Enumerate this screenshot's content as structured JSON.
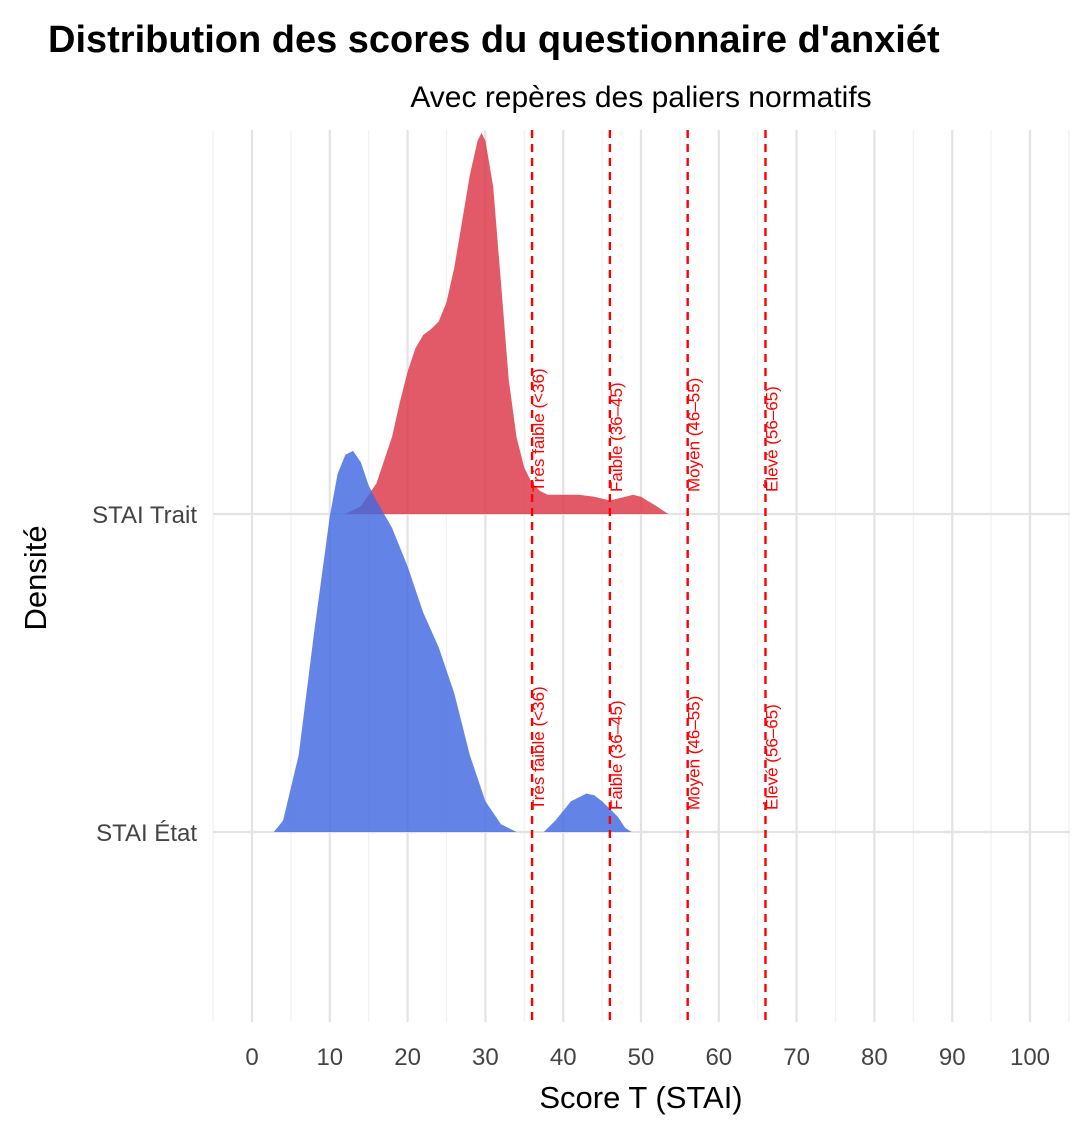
{
  "chart_data": {
    "type": "area",
    "title": "Distribution des scores du questionnaire d'anxiét",
    "subtitle": "Avec repères des paliers normatifs",
    "xlabel": "Score T (STAI)",
    "ylabel": "Densité",
    "xlim": [
      -5,
      105
    ],
    "x_ticks": [
      0,
      10,
      20,
      30,
      40,
      50,
      60,
      70,
      80,
      90,
      100
    ],
    "grid": true,
    "legend": "none",
    "categories": [
      "STAI Trait",
      "STAI État"
    ],
    "series": [
      {
        "name": "STAI Trait",
        "color": "#dc3545",
        "x": [
          12,
          14,
          16,
          18,
          19,
          20,
          21,
          22,
          23,
          24,
          25,
          26,
          27,
          28,
          29,
          29.5,
          30,
          31,
          32,
          33,
          34,
          35,
          36,
          37,
          38,
          40,
          42,
          44,
          46,
          48,
          49,
          50,
          52,
          53.5
        ],
        "y": [
          0.0,
          0.02,
          0.08,
          0.2,
          0.29,
          0.37,
          0.43,
          0.465,
          0.48,
          0.5,
          0.55,
          0.64,
          0.76,
          0.88,
          0.97,
          0.99,
          0.97,
          0.85,
          0.6,
          0.35,
          0.2,
          0.12,
          0.08,
          0.06,
          0.05,
          0.05,
          0.05,
          0.045,
          0.035,
          0.045,
          0.05,
          0.045,
          0.02,
          0.0
        ]
      },
      {
        "name": "STAI État",
        "color": "#4169e1",
        "x": [
          2.8,
          4,
          6,
          8,
          10,
          11,
          12,
          13,
          14,
          15,
          16,
          18,
          20,
          22,
          24,
          26,
          28,
          30,
          32,
          34,
          34.1
        ],
        "y": [
          0.0,
          0.03,
          0.2,
          0.52,
          0.82,
          0.93,
          0.98,
          0.99,
          0.96,
          0.9,
          0.86,
          0.79,
          0.69,
          0.57,
          0.48,
          0.36,
          0.2,
          0.08,
          0.02,
          0.0,
          0.0
        ]
      },
      {
        "name": "STAI État",
        "color": "#4169e1",
        "x": [
          37.5,
          39,
          41,
          42,
          43,
          44,
          45,
          46,
          47,
          48,
          48.8
        ],
        "y": [
          0.0,
          0.03,
          0.08,
          0.09,
          0.1,
          0.095,
          0.08,
          0.06,
          0.04,
          0.01,
          0.0
        ]
      }
    ],
    "reference_lines": [
      {
        "x": 36,
        "label": "Très faible (<36)"
      },
      {
        "x": 46,
        "label": "Faible (36–45)"
      },
      {
        "x": 56,
        "label": "Moyen (46–55)"
      },
      {
        "x": 66,
        "label": "Élevé (56–65)"
      }
    ],
    "ref_line_color": "#ff0000"
  }
}
